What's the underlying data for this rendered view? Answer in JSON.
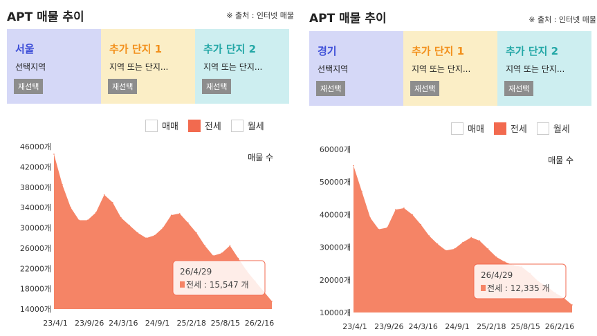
{
  "panels": [
    {
      "title": "APT 매물 추이",
      "source": "※ 출처 : 인터넷 매물",
      "cards": [
        {
          "title": "서울",
          "subtitle": "선택지역",
          "button": "재선택",
          "bg": "#d5d8f7",
          "title_color": "#3e4fd8"
        },
        {
          "title": "추가 단지 1",
          "subtitle": "지역 또는 단지...",
          "button": "재선택",
          "bg": "#fbeec6",
          "title_color": "#f2901c"
        },
        {
          "title": "추가 단지 2",
          "subtitle": "지역 또는 단지...",
          "button": "재선택",
          "bg": "#cdeef0",
          "title_color": "#23a7a6"
        }
      ],
      "legend": [
        {
          "label": "매매",
          "checked": false
        },
        {
          "label": "전세",
          "checked": true
        },
        {
          "label": "월세",
          "checked": false
        }
      ]
    },
    {
      "title": "APT 매물 추이",
      "source": "※ 출처 : 인터넷 매물",
      "cards": [
        {
          "title": "경기",
          "subtitle": "선택지역",
          "button": "재선택",
          "bg": "#d5d8f7",
          "title_color": "#3e4fd8"
        },
        {
          "title": "추가 단지 1",
          "subtitle": "지역 또는 단지...",
          "button": "재선택",
          "bg": "#fbeec6",
          "title_color": "#f2901c"
        },
        {
          "title": "추가 단지 2",
          "subtitle": "지역 또는 단지...",
          "button": "재선택",
          "bg": "#cdeef0",
          "title_color": "#23a7a6"
        }
      ],
      "legend": [
        {
          "label": "매매",
          "checked": false
        },
        {
          "label": "전세",
          "checked": true
        },
        {
          "label": "월세",
          "checked": false
        }
      ]
    }
  ],
  "chart_data": [
    {
      "type": "area",
      "ylabel": "매물 수",
      "series": [
        {
          "name": "전세",
          "color": "#f58466"
        }
      ],
      "ylim": [
        14000,
        46000
      ],
      "yticks": [
        "14000개",
        "18000개",
        "22000개",
        "26000개",
        "30000개",
        "34000개",
        "38000개",
        "42000개",
        "46000개"
      ],
      "ytick_values": [
        14000,
        18000,
        22000,
        26000,
        30000,
        34000,
        38000,
        42000,
        46000
      ],
      "xticks": [
        "23/4/1",
        "23/9/26",
        "24/3/16",
        "24/9/1",
        "25/2/18",
        "25/8/15",
        "26/2/16"
      ],
      "x_dates": [
        "23/4/1",
        "23/5/15",
        "23/7/1",
        "23/8/15",
        "23/9/26",
        "23/11/15",
        "24/1/1",
        "24/2/15",
        "24/3/16",
        "24/5/1",
        "24/6/15",
        "24/8/1",
        "24/9/1",
        "24/10/15",
        "24/12/1",
        "25/1/15",
        "25/2/18",
        "25/4/1",
        "25/5/15",
        "25/7/1",
        "25/8/15",
        "25/10/1",
        "25/11/15",
        "26/1/1",
        "26/2/16",
        "26/3/15",
        "26/4/29"
      ],
      "values": [
        44500,
        38500,
        34000,
        31500,
        31500,
        33000,
        36500,
        35000,
        32000,
        30500,
        29000,
        28000,
        28500,
        30000,
        32500,
        32800,
        31000,
        29000,
        26500,
        24500,
        25000,
        26500,
        24000,
        21500,
        19500,
        17500,
        15547
      ],
      "tooltip": {
        "date": "26/4/29",
        "text": "전세 : 15,547 개"
      }
    },
    {
      "type": "area",
      "ylabel": "매물 수",
      "series": [
        {
          "name": "전세",
          "color": "#f58466"
        }
      ],
      "ylim": [
        10000,
        60000
      ],
      "yticks": [
        "10000개",
        "20000개",
        "30000개",
        "40000개",
        "50000개",
        "60000개"
      ],
      "ytick_values": [
        10000,
        20000,
        30000,
        40000,
        50000,
        60000
      ],
      "xticks": [
        "23/4/1",
        "23/9/26",
        "24/3/16",
        "24/9/1",
        "25/2/18",
        "25/8/15",
        "26/2/16"
      ],
      "x_dates": [
        "23/4/1",
        "23/5/15",
        "23/7/1",
        "23/8/15",
        "23/9/26",
        "23/11/15",
        "24/1/1",
        "24/2/15",
        "24/3/16",
        "24/5/1",
        "24/6/15",
        "24/8/1",
        "24/9/1",
        "24/10/15",
        "24/12/1",
        "25/1/15",
        "25/2/18",
        "25/4/1",
        "25/5/15",
        "25/7/1",
        "25/8/15",
        "25/10/1",
        "25/11/15",
        "26/1/1",
        "26/2/16",
        "26/3/15",
        "26/4/29"
      ],
      "values": [
        55000,
        47000,
        39000,
        35500,
        36000,
        41500,
        42000,
        40000,
        37000,
        33500,
        31000,
        29000,
        29500,
        31500,
        33000,
        32000,
        29500,
        27000,
        25500,
        24500,
        24000,
        22000,
        19500,
        18000,
        16000,
        14500,
        12335
      ],
      "tooltip": {
        "date": "26/4/29",
        "text": "전세 : 12,335 개"
      }
    }
  ]
}
